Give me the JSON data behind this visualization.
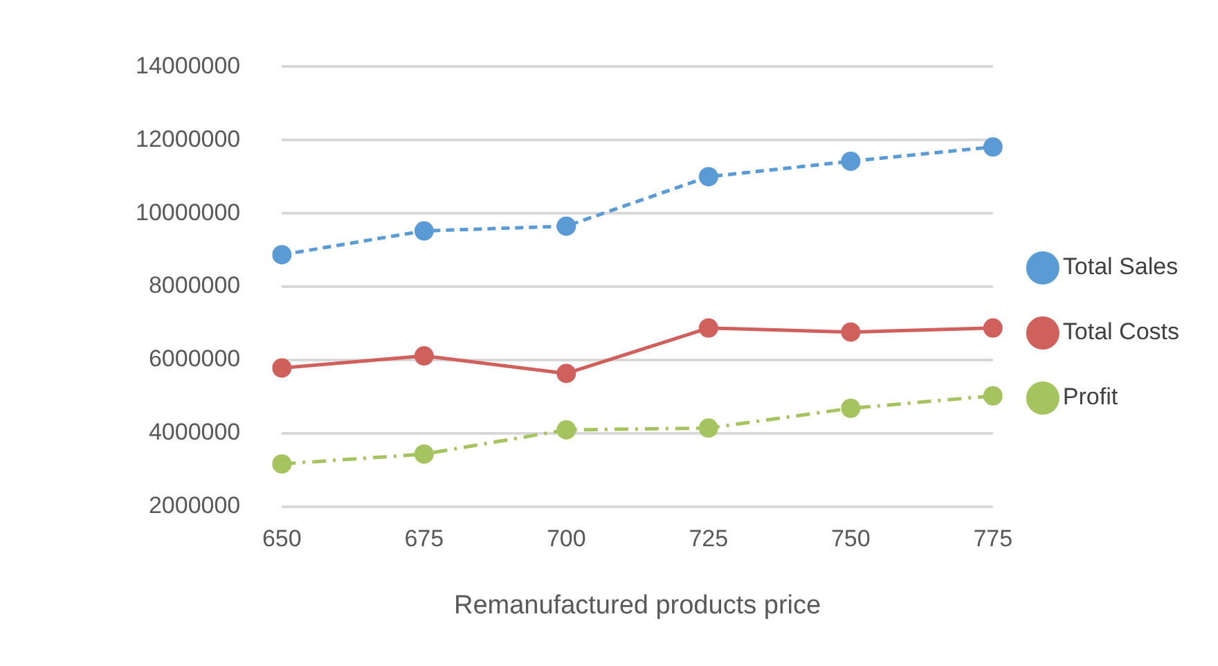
{
  "chart_data": {
    "type": "line",
    "xlabel": "Remanufactured products price",
    "categories": [
      "650",
      "675",
      "700",
      "725",
      "750",
      "775"
    ],
    "series": [
      {
        "name": "Total Sales",
        "color": "#5b9bd5",
        "line_style": "dashed",
        "values": [
          8870000,
          9520000,
          9650000,
          11000000,
          11420000,
          11810000
        ]
      },
      {
        "name": "Total Costs",
        "color": "#d0605b",
        "line_style": "solid",
        "values": [
          5780000,
          6110000,
          5630000,
          6870000,
          6760000,
          6870000
        ]
      },
      {
        "name": "Profit",
        "color": "#a5c45f",
        "line_style": "dashdot",
        "values": [
          3160000,
          3430000,
          4090000,
          4140000,
          4680000,
          5020000
        ]
      }
    ],
    "ylim": [
      2000000,
      14000000
    ],
    "yticks": [
      2000000,
      4000000,
      6000000,
      8000000,
      10000000,
      12000000,
      14000000
    ],
    "grid": "y",
    "legend": "right",
    "marker": "circle"
  }
}
